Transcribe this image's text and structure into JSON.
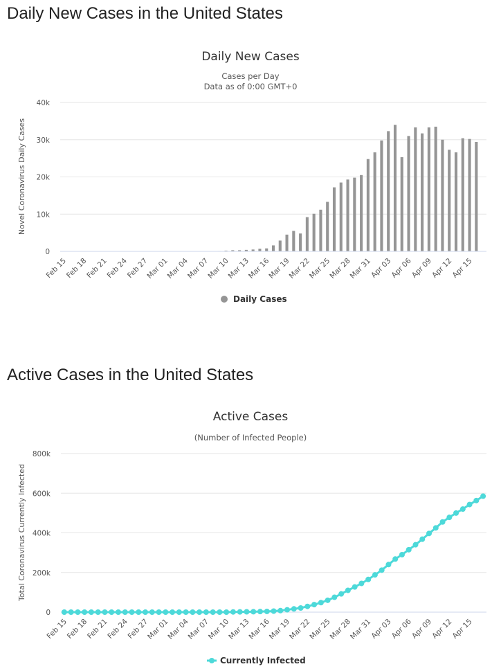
{
  "headings": {
    "daily": "Daily New Cases in the United States",
    "active": "Active Cases in the United States"
  },
  "chart_data": [
    {
      "type": "bar",
      "title": "Daily New Cases",
      "subtitle": [
        "Cases per Day",
        "Data as of 0:00 GMT+0"
      ],
      "ylabel": "Novel Coronavirus Daily Cases",
      "xlabel": "",
      "ylim": [
        0,
        40000
      ],
      "yticks": [
        0,
        10000,
        20000,
        30000,
        40000
      ],
      "ytick_labels": [
        "0",
        "10k",
        "20k",
        "30k",
        "40k"
      ],
      "grid": true,
      "legend_position": "bottom-center",
      "color": "#959595",
      "categories": [
        "Feb 15",
        "Feb 16",
        "Feb 17",
        "Feb 18",
        "Feb 19",
        "Feb 20",
        "Feb 21",
        "Feb 22",
        "Feb 23",
        "Feb 24",
        "Feb 25",
        "Feb 26",
        "Feb 27",
        "Feb 28",
        "Feb 29",
        "Mar 01",
        "Mar 02",
        "Mar 03",
        "Mar 04",
        "Mar 05",
        "Mar 06",
        "Mar 07",
        "Mar 08",
        "Mar 09",
        "Mar 10",
        "Mar 11",
        "Mar 12",
        "Mar 13",
        "Mar 14",
        "Mar 15",
        "Mar 16",
        "Mar 17",
        "Mar 18",
        "Mar 19",
        "Mar 20",
        "Mar 21",
        "Mar 22",
        "Mar 23",
        "Mar 24",
        "Mar 25",
        "Mar 26",
        "Mar 27",
        "Mar 28",
        "Mar 29",
        "Mar 30",
        "Mar 31",
        "Apr 01",
        "Apr 02",
        "Apr 03",
        "Apr 04",
        "Apr 05",
        "Apr 06",
        "Apr 07",
        "Apr 08",
        "Apr 09",
        "Apr 10",
        "Apr 11",
        "Apr 12",
        "Apr 13",
        "Apr 14",
        "Apr 15",
        "Apr 16",
        "Apr 17"
      ],
      "tick_labels": [
        "Feb 15",
        "Feb 18",
        "Feb 21",
        "Feb 24",
        "Feb 27",
        "Mar 01",
        "Mar 04",
        "Mar 07",
        "Mar 10",
        "Mar 13",
        "Mar 16",
        "Mar 19",
        "Mar 22",
        "Mar 25",
        "Mar 28",
        "Mar 31",
        "Apr 03",
        "Apr 06",
        "Apr 09",
        "Apr 12",
        "Apr 15"
      ],
      "series": [
        {
          "name": "Daily Cases",
          "values": [
            0,
            0,
            0,
            0,
            0,
            0,
            0,
            0,
            0,
            0,
            0,
            0,
            0,
            0,
            0,
            0,
            0,
            0,
            0,
            0,
            0,
            0,
            0,
            100,
            200,
            300,
            300,
            400,
            500,
            700,
            800,
            1600,
            2900,
            4500,
            5500,
            4800,
            9200,
            10100,
            11200,
            13300,
            17200,
            18500,
            19300,
            19800,
            20500,
            24800,
            26600,
            29800,
            32300,
            34000,
            25300,
            31000,
            33300,
            31700,
            33300,
            33500,
            30000,
            27300,
            26600,
            30400,
            30200,
            29400,
            0
          ]
        }
      ]
    },
    {
      "type": "line",
      "title": "Active Cases",
      "subtitle": [
        "(Number of Infected People)"
      ],
      "ylabel": "Total Coronavirus Currently Infected",
      "xlabel": "",
      "ylim": [
        0,
        800000
      ],
      "yticks": [
        0,
        200000,
        400000,
        600000,
        800000
      ],
      "ytick_labels": [
        "0",
        "200k",
        "400k",
        "600k",
        "800k"
      ],
      "grid": true,
      "legend_position": "bottom-center",
      "color": "#4dd9d9",
      "categories": [
        "Feb 15",
        "Feb 16",
        "Feb 17",
        "Feb 18",
        "Feb 19",
        "Feb 20",
        "Feb 21",
        "Feb 22",
        "Feb 23",
        "Feb 24",
        "Feb 25",
        "Feb 26",
        "Feb 27",
        "Feb 28",
        "Feb 29",
        "Mar 01",
        "Mar 02",
        "Mar 03",
        "Mar 04",
        "Mar 05",
        "Mar 06",
        "Mar 07",
        "Mar 08",
        "Mar 09",
        "Mar 10",
        "Mar 11",
        "Mar 12",
        "Mar 13",
        "Mar 14",
        "Mar 15",
        "Mar 16",
        "Mar 17",
        "Mar 18",
        "Mar 19",
        "Mar 20",
        "Mar 21",
        "Mar 22",
        "Mar 23",
        "Mar 24",
        "Mar 25",
        "Mar 26",
        "Mar 27",
        "Mar 28",
        "Mar 29",
        "Mar 30",
        "Mar 31",
        "Apr 01",
        "Apr 02",
        "Apr 03",
        "Apr 04",
        "Apr 05",
        "Apr 06",
        "Apr 07",
        "Apr 08",
        "Apr 09",
        "Apr 10",
        "Apr 11",
        "Apr 12",
        "Apr 13",
        "Apr 14",
        "Apr 15",
        "Apr 16",
        "Apr 17"
      ],
      "tick_labels": [
        "Feb 15",
        "Feb 18",
        "Feb 21",
        "Feb 24",
        "Feb 27",
        "Mar 01",
        "Mar 04",
        "Mar 07",
        "Mar 10",
        "Mar 13",
        "Mar 16",
        "Mar 19",
        "Mar 22",
        "Mar 25",
        "Mar 28",
        "Mar 31",
        "Apr 03",
        "Apr 06",
        "Apr 09",
        "Apr 12",
        "Apr 15"
      ],
      "series": [
        {
          "name": "Currently Infected",
          "values": [
            0,
            0,
            0,
            0,
            0,
            0,
            0,
            0,
            0,
            0,
            0,
            0,
            0,
            0,
            0,
            0,
            0,
            0,
            0,
            0,
            0,
            0,
            0,
            0,
            0,
            1000,
            1300,
            1700,
            2200,
            2900,
            3700,
            5200,
            7800,
            12000,
            16500,
            21000,
            29000,
            38000,
            48000,
            60000,
            75000,
            92000,
            110000,
            127000,
            145000,
            165000,
            188000,
            212000,
            240000,
            268000,
            290000,
            315000,
            340000,
            368000,
            397000,
            425000,
            455000,
            478000,
            500000,
            520000,
            543000,
            563000,
            585000
          ]
        }
      ]
    }
  ]
}
